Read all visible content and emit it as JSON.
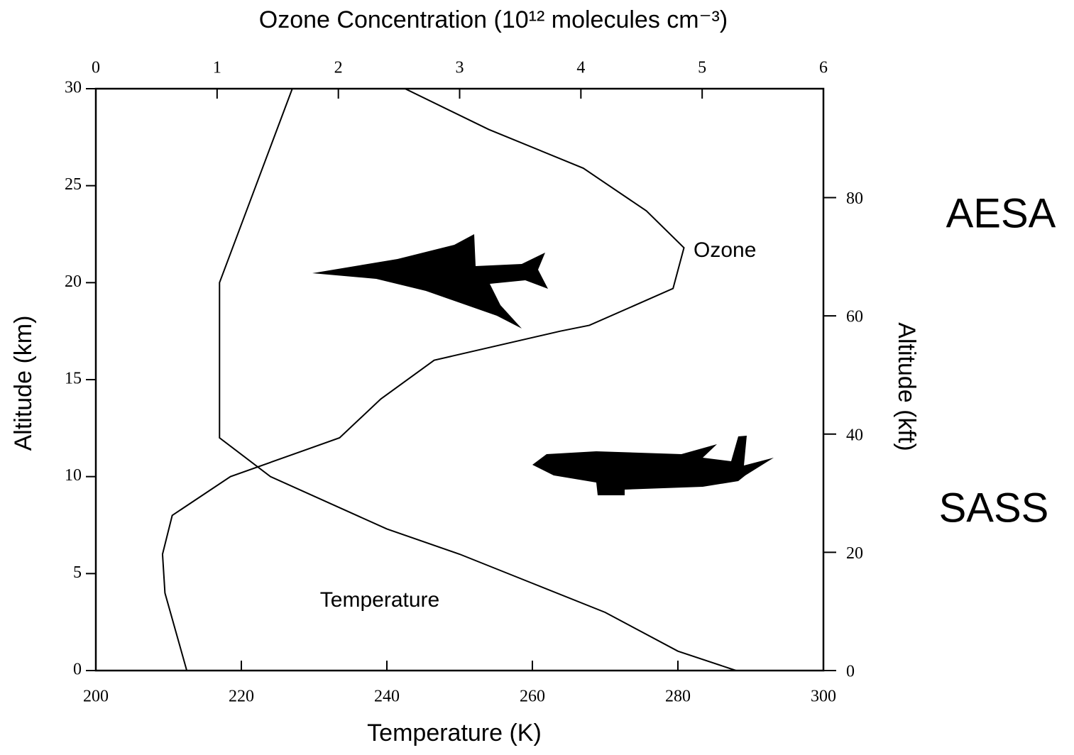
{
  "chart_data": {
    "type": "line",
    "title": "Ozone Concentration (10¹² molecules cm⁻³)",
    "x_label": "Temperature (K)",
    "y_label": "Altitude (km)",
    "y2_label": "Altitude (kft)",
    "annotations": [
      "AESA",
      "SASS"
    ],
    "xlim": [
      200,
      300
    ],
    "xticks": [
      200,
      220,
      240,
      260,
      280,
      300
    ],
    "x2lim": [
      0,
      6
    ],
    "x2ticks": [
      0,
      1,
      2,
      3,
      4,
      5,
      6
    ],
    "ylim": [
      0,
      30
    ],
    "yticks": [
      0,
      5,
      10,
      15,
      20,
      25,
      30
    ],
    "y2lim": [
      0,
      98.43
    ],
    "y2ticks": [
      0,
      20,
      40,
      60,
      80
    ],
    "color": "#000000",
    "series": [
      {
        "name": "Temperature",
        "x": [
          288,
          280,
          270,
          260,
          250,
          240,
          224,
          217,
          217,
          219,
          222,
          227
        ],
        "values": [
          0,
          1,
          3,
          4.5,
          6,
          7.3,
          10,
          12,
          20,
          22,
          25,
          30
        ]
      },
      {
        "name": "Ozone",
        "axis": "x2",
        "x": [
          0.75,
          0.57,
          0.55,
          0.63,
          1.11,
          2.01,
          2.35,
          2.79,
          3.83,
          4.07,
          4.76,
          4.85,
          4.54,
          4.02,
          3.24,
          2.55
        ],
        "values": [
          0,
          4,
          6,
          8,
          10,
          12,
          14,
          16,
          17.5,
          17.8,
          19.7,
          21.8,
          23.7,
          25.9,
          27.9,
          30
        ]
      }
    ]
  }
}
